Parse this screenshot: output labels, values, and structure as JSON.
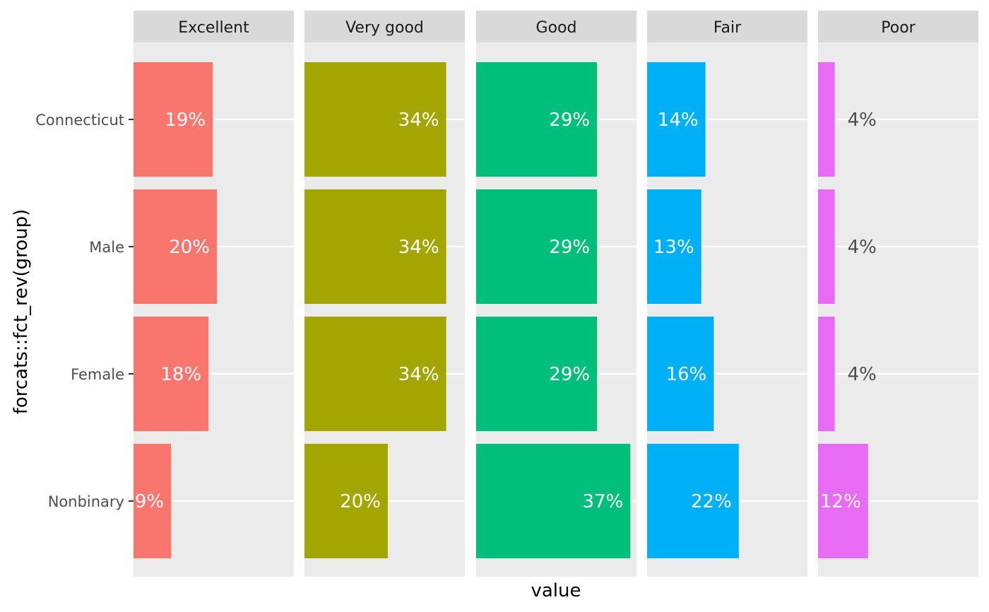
{
  "chart_data": {
    "type": "bar",
    "orientation": "horizontal",
    "facet_by": "rating",
    "facets": [
      {
        "name": "Excellent",
        "color": "#F8766D",
        "values": [
          19,
          20,
          18,
          9
        ]
      },
      {
        "name": "Very good",
        "color": "#A3A500",
        "values": [
          34,
          34,
          34,
          20
        ]
      },
      {
        "name": "Good",
        "color": "#00BF7D",
        "values": [
          29,
          29,
          29,
          37
        ]
      },
      {
        "name": "Fair",
        "color": "#00B0F6",
        "values": [
          14,
          13,
          16,
          22
        ]
      },
      {
        "name": "Poor",
        "color": "#E76BF3",
        "values": [
          4,
          4,
          4,
          12
        ]
      }
    ],
    "categories": [
      "Connecticut",
      "Male",
      "Female",
      "Nonbinary"
    ],
    "value_labels": [
      [
        "19%",
        "20%",
        "18%",
        "9%"
      ],
      [
        "34%",
        "34%",
        "34%",
        "20%"
      ],
      [
        "29%",
        "29%",
        "29%",
        "37%"
      ],
      [
        "14%",
        "13%",
        "16%",
        "22%"
      ],
      [
        "4%",
        "4%",
        "4%",
        "12%"
      ]
    ],
    "xlabel": "value",
    "ylabel": "forcats::fct_rev(group)",
    "xlim": [
      0,
      38
    ],
    "grid": true,
    "legend": "none",
    "panel_background": "#EBEBEB",
    "strip_background": "#D9D9D9"
  }
}
